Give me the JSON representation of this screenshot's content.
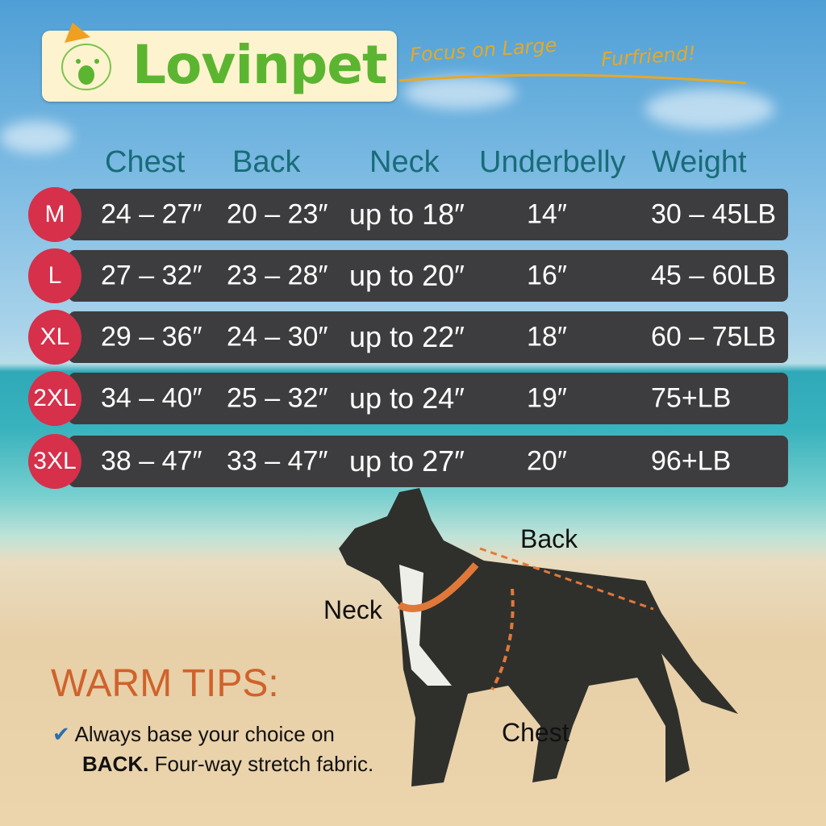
{
  "brand": {
    "name": "Lovinpet",
    "slogan_part1": "Focus on Large",
    "slogan_part2": "Furfriend!"
  },
  "colors": {
    "badge": "#d6304b",
    "row": "#3d3d3f",
    "header": "#196c78",
    "tips": "#d0622c",
    "logo_green": "#5cb531"
  },
  "table": {
    "headers": [
      "Chest",
      "Back",
      "Neck",
      "Underbelly",
      "Weight"
    ],
    "rows": [
      {
        "size": "M",
        "chest": "24 – 27″",
        "back": "20 – 23″",
        "neck": "up to 18″",
        "underbelly": "14″",
        "weight": "30 – 45LB"
      },
      {
        "size": "L",
        "chest": "27 – 32″",
        "back": "23 – 28″",
        "neck": "up to 20″",
        "underbelly": "16″",
        "weight": "45 – 60LB"
      },
      {
        "size": "XL",
        "chest": "29 – 36″",
        "back": "24 – 30″",
        "neck": "up to 22″",
        "underbelly": "18″",
        "weight": "60 – 75LB"
      },
      {
        "size": "2XL",
        "chest": "34 – 40″",
        "back": "25 – 32″",
        "neck": "up to 24″",
        "underbelly": "19″",
        "weight": "75+LB"
      },
      {
        "size": "3XL",
        "chest": "38 – 47″",
        "back": "33 – 47″",
        "neck": "up to 27″",
        "underbelly": "20″",
        "weight": "96+LB"
      }
    ]
  },
  "diagram": {
    "back": "Back",
    "neck": "Neck",
    "chest": "Chest"
  },
  "tips": {
    "title": "WARM TIPS:",
    "check_icon": "check-box-icon",
    "line1": "Always base your choice on",
    "line2_bold": "BACK.",
    "line2_rest": "Four-way stretch fabric."
  }
}
